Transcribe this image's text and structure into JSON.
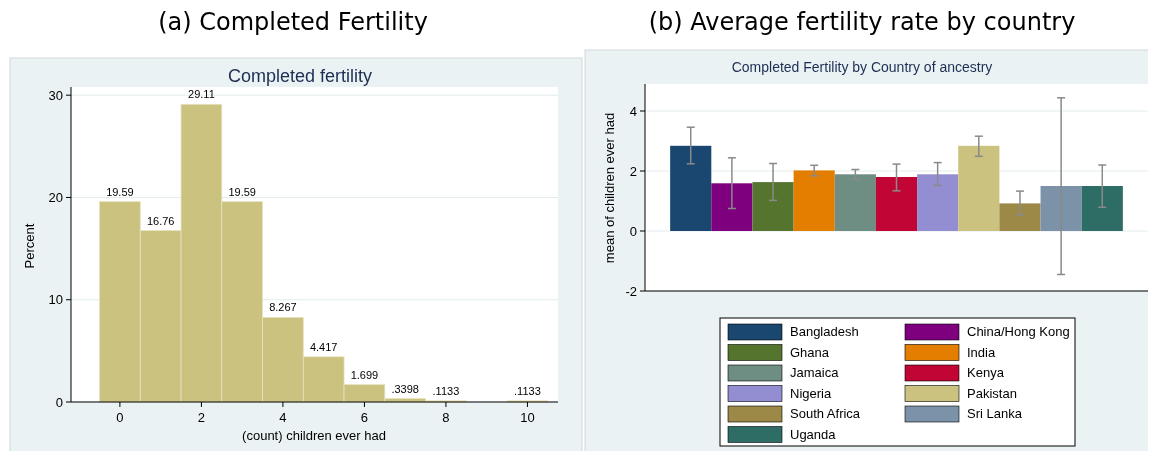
{
  "chart_data": [
    {
      "type": "histogram",
      "title": "(a)  Completed Fertility",
      "subtitle": "Completed fertility",
      "xlabel": "(count) children ever had",
      "ylabel": "Percent",
      "bins": [
        -0.5,
        0.5,
        1.5,
        2.5,
        3.5,
        4.5,
        5.5,
        6.5,
        7.5,
        8.5,
        9.5,
        10.5
      ],
      "values": [
        19.59,
        16.76,
        29.11,
        19.59,
        8.267,
        4.417,
        1.699,
        0.3398,
        0.1133,
        0,
        0.1133
      ],
      "value_labels": [
        "19.59",
        "16.76",
        "29.11",
        "19.59",
        "8.267",
        "4.417",
        "1.699",
        ".3398",
        ".1133",
        null,
        ".1133"
      ],
      "color": "#cac27e",
      "xlim": [
        -1.2,
        10.75
      ],
      "xticks": [
        0,
        2,
        4,
        6,
        8,
        10
      ],
      "ylim": [
        0,
        30.8
      ],
      "yticks": [
        0,
        10,
        20,
        30
      ],
      "grid": "y"
    },
    {
      "type": "bar",
      "title": "(b) Average fertility rate by country",
      "subtitle": "Completed Fertility by Country of ancestry",
      "ylabel": "mean of children ever had",
      "categories": [
        null
      ],
      "series": [
        {
          "name": "Bangladesh",
          "color": "#1a476f",
          "values": [
            2.84
          ],
          "errors": [
            [
              2.24,
              3.46
            ]
          ]
        },
        {
          "name": "China/Hong Kong",
          "color": "#7f007f",
          "values": [
            1.59
          ],
          "errors": [
            [
              0.75,
              2.44
            ]
          ]
        },
        {
          "name": "Ghana",
          "color": "#55752f",
          "values": [
            1.63
          ],
          "errors": [
            [
              1.02,
              2.25
            ]
          ]
        },
        {
          "name": "India",
          "color": "#e37e00",
          "values": [
            2.02
          ],
          "errors": [
            [
              1.84,
              2.19
            ]
          ]
        },
        {
          "name": "Jamaica",
          "color": "#6e8e84",
          "values": [
            1.89
          ],
          "errors": [
            [
              1.72,
              2.05
            ]
          ]
        },
        {
          "name": "Kenya",
          "color": "#c10534",
          "values": [
            1.8
          ],
          "errors": [
            [
              1.34,
              2.23
            ]
          ]
        },
        {
          "name": "Nigeria",
          "color": "#938dd2",
          "values": [
            1.89
          ],
          "errors": [
            [
              1.52,
              2.28
            ]
          ]
        },
        {
          "name": "Pakistan",
          "color": "#cac27e",
          "values": [
            2.84
          ],
          "errors": [
            [
              2.49,
              3.16
            ]
          ]
        },
        {
          "name": "South Africa",
          "color": "#9c8847",
          "values": [
            0.92
          ],
          "errors": [
            [
              0.53,
              1.33
            ]
          ]
        },
        {
          "name": "Sri Lanka",
          "color": "#7b92a8",
          "values": [
            1.5
          ],
          "errors": [
            [
              -1.45,
              4.44
            ]
          ]
        },
        {
          "name": "Uganda",
          "color": "#2d6d66",
          "values": [
            1.5
          ],
          "errors": [
            [
              0.79,
              2.2
            ]
          ]
        }
      ],
      "ylim": [
        -2,
        4.9
      ],
      "yticks": [
        -2,
        0,
        2,
        4
      ],
      "grid": "y",
      "legend": "bottom",
      "tick_labels": "y"
    }
  ]
}
